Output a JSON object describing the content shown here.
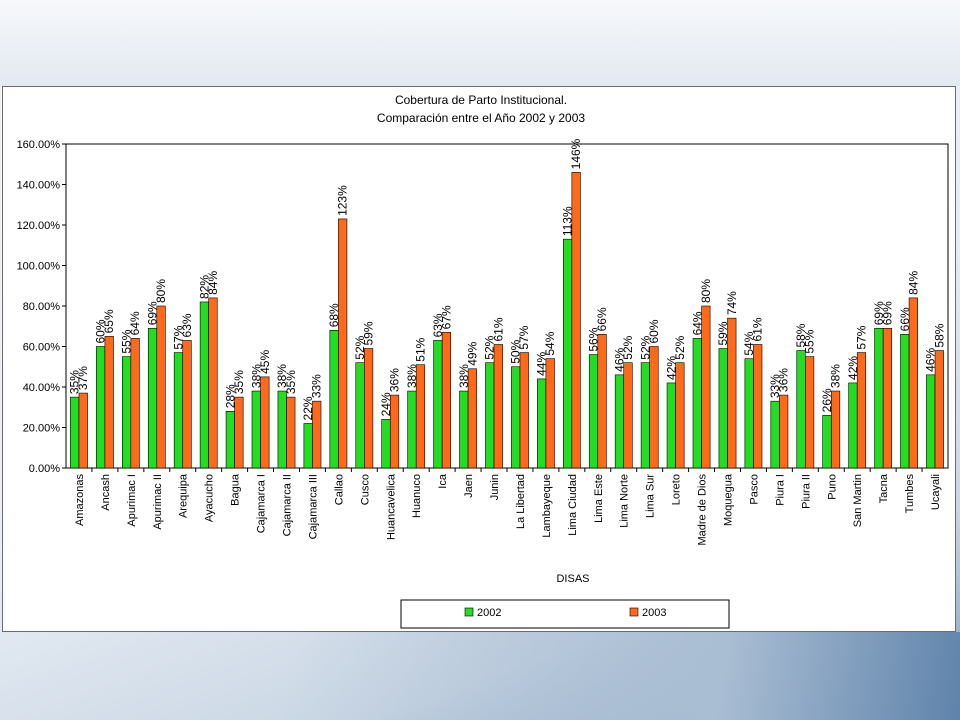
{
  "chart_data": {
    "type": "bar",
    "title": "Cobertura de Parto Institucional.",
    "subtitle": "Comparación entre el Año 2002 y 2003",
    "xlabel": "DISAS",
    "ylabel": "",
    "ylim": [
      0,
      160
    ],
    "yticks": [
      "0.00%",
      "20.00%",
      "40.00%",
      "60.00%",
      "80.00%",
      "100.00%",
      "120.00%",
      "140.00%",
      "160.00%"
    ],
    "grid": false,
    "legend_position": "bottom",
    "categories": [
      "Amazonas",
      "Ancash",
      "Apurimac I",
      "Apurimac II",
      "Arequipa",
      "Ayacucho",
      "Bagua",
      "Cajamarca I",
      "Cajamarca II",
      "Cajamarca III",
      "Callao",
      "Cusco",
      "Huancavelica",
      "Huanuco",
      "Ica",
      "Jaen",
      "Junin",
      "La Libertad",
      "Lambayeque",
      "Lima Ciudad",
      "Lima Este",
      "Lima Norte",
      "Lima Sur",
      "Loreto",
      "Madre de Dios",
      "Moquegua",
      "Pasco",
      "Piura I",
      "Piura II",
      "Puno",
      "San Martin",
      "Tacna",
      "Tumbes",
      "Ucayali"
    ],
    "series": [
      {
        "name": "2002",
        "color": "#22dd22",
        "values": [
          35,
          60,
          55,
          69,
          57,
          82,
          28,
          38,
          38,
          22,
          68,
          52,
          24,
          38,
          63,
          38,
          52,
          50,
          44,
          113,
          56,
          46,
          52,
          42,
          64,
          59,
          54,
          33,
          58,
          26,
          42,
          69,
          66,
          46
        ],
        "labels": [
          "35%",
          "60%",
          "55%",
          "69%",
          "57%",
          "82%",
          "28%",
          "38%",
          "38%",
          "22%",
          "68%",
          "52%",
          "24%",
          "38%",
          "63%",
          "38%",
          "52%",
          "50%",
          "44%",
          "113%",
          "56%",
          "46%",
          "52%",
          "42%",
          "64%",
          "59%",
          "54%",
          "33%",
          "58%",
          "26%",
          "42%",
          "69%",
          "66%",
          "46%"
        ]
      },
      {
        "name": "2003",
        "color": "#ff6a1a",
        "values": [
          37,
          65,
          64,
          80,
          63,
          84,
          35,
          45,
          35,
          33,
          123,
          59,
          36,
          51,
          67,
          49,
          61,
          57,
          54,
          146,
          66,
          52,
          60,
          52,
          80,
          74,
          61,
          36,
          55,
          38,
          57,
          69,
          84,
          58
        ],
        "labels": [
          "37%",
          "65%",
          "64%",
          "80%",
          "63%",
          "84%",
          "35%",
          "45%",
          "35%",
          "33%",
          "123%",
          "59%",
          "36%",
          "51%",
          "67%",
          "49%",
          "61%",
          "57%",
          "54%",
          "146%",
          "66%",
          "52%",
          "60%",
          "52%",
          "80%",
          "74%",
          "61%",
          "36%",
          "55%",
          "38%",
          "57%",
          "69%",
          "84%",
          "58%"
        ]
      }
    ]
  }
}
